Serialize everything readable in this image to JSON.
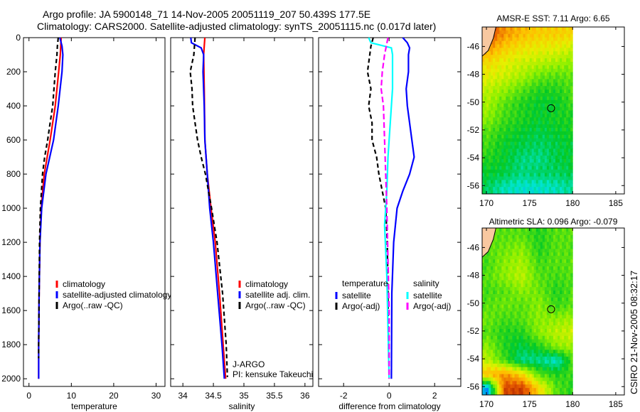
{
  "title_line1": "Argo profile: JA 5900148_71 14-Nov-2005 20051119_207 50.439S 177.5E",
  "title_line2": "Climatology: CARS2000. Satellite-adjusted climatology: synTS_20051115.nc (0.017d later)",
  "side_label": "CSIRO 21-Nov-2005 08:32:17",
  "chart_data": [
    {
      "type": "line",
      "id": "temp",
      "xlabel": "temperature",
      "xlim": [
        -1.3,
        32.1
      ],
      "ylim": [
        0,
        2045
      ],
      "xticks": [
        0,
        10,
        20,
        30
      ],
      "yticks": [
        0,
        200,
        400,
        600,
        800,
        1000,
        1200,
        1400,
        1600,
        1800,
        2000
      ],
      "legend": [
        "climatology",
        "satellite-adjusted climatology",
        "Argo(..raw -QC)"
      ],
      "series": [
        {
          "name": "climatology",
          "color": "#ff0000",
          "dash": "",
          "depth": [
            0,
            50,
            100,
            200,
            400,
            600,
            800,
            1000,
            1200,
            1500,
            1800,
            2000
          ],
          "values": [
            7.6,
            7.5,
            7.4,
            7.0,
            6.2,
            5.0,
            3.6,
            2.9,
            2.6,
            2.4,
            2.3,
            2.3
          ]
        },
        {
          "name": "satellite-adjusted climatology",
          "color": "#0000ff",
          "dash": "",
          "depth": [
            0,
            50,
            100,
            200,
            400,
            600,
            800,
            1000,
            1200,
            1500,
            1800,
            2000
          ],
          "values": [
            7.3,
            7.8,
            8.0,
            7.8,
            6.9,
            5.8,
            4.0,
            3.0,
            2.6,
            2.4,
            2.3,
            2.3
          ]
        },
        {
          "name": "Argo(..raw -QC)",
          "color": "#000000",
          "dash": "6,4",
          "depth": [
            0,
            50,
            100,
            200,
            300,
            400,
            500,
            600,
            700,
            800,
            1000,
            1200,
            1500,
            1800,
            1880
          ],
          "values": [
            6.9,
            6.7,
            6.6,
            6.2,
            5.9,
            5.6,
            5.0,
            4.4,
            3.7,
            3.2,
            2.7,
            2.5,
            2.4,
            2.3,
            2.3
          ]
        }
      ]
    },
    {
      "type": "line",
      "id": "sal",
      "xlabel": "salinity",
      "xlim": [
        33.8,
        36.13
      ],
      "ylim": [
        0,
        2045
      ],
      "xticks": [
        34,
        34.5,
        35,
        35.5,
        36
      ],
      "yticks": [],
      "legend": [
        "climatology",
        "satellite adj. clim.",
        "Argo(..raw -QC)"
      ],
      "annotation": [
        "J-ARGO",
        "PI: kensuke Takeuchi"
      ],
      "series": [
        {
          "name": "climatology",
          "color": "#ff0000",
          "dash": "",
          "depth": [
            0,
            50,
            100,
            300,
            600,
            800,
            1000,
            1200,
            1500,
            1800,
            2000
          ],
          "values": [
            34.36,
            34.35,
            34.34,
            34.35,
            34.36,
            34.4,
            34.46,
            34.53,
            34.6,
            34.66,
            34.7
          ]
        },
        {
          "name": "satellite adj. clim.",
          "color": "#0000ff",
          "dash": "",
          "depth": [
            0,
            30,
            60,
            100,
            200,
            400,
            600,
            800,
            1000,
            1200,
            1500,
            1800,
            2000
          ],
          "values": [
            34.13,
            34.14,
            34.3,
            34.34,
            34.33,
            34.35,
            34.36,
            34.4,
            34.44,
            34.5,
            34.57,
            34.64,
            34.68
          ]
        },
        {
          "name": "Argo(..raw -QC)",
          "color": "#000000",
          "dash": "6,4",
          "depth": [
            0,
            100,
            200,
            300,
            400,
            500,
            600,
            700,
            800,
            1000,
            1200,
            1500,
            1800,
            1990
          ],
          "values": [
            34.2,
            34.18,
            34.12,
            34.15,
            34.16,
            34.2,
            34.24,
            34.3,
            34.37,
            34.47,
            34.56,
            34.65,
            34.71,
            34.73
          ]
        }
      ]
    },
    {
      "type": "line",
      "id": "diff",
      "xlabel": "difference from climatology",
      "xlim": [
        -3.1,
        3.15
      ],
      "ylim": [
        0,
        2045
      ],
      "xticks": [
        -2,
        0,
        2
      ],
      "yticks": [],
      "legend_headers": [
        "temperature",
        "salinity"
      ],
      "legend": [
        "satellite",
        "Argo(-adj)",
        "satellite",
        "Argo(-adj)"
      ],
      "series": [
        {
          "name": "temperature satellite",
          "color": "#0000ff",
          "dash": "",
          "depth": [
            0,
            30,
            60,
            100,
            200,
            300,
            400,
            500,
            600,
            700,
            800,
            900,
            1000,
            1200,
            1500,
            2000
          ],
          "values": [
            0.6,
            0.8,
            0.9,
            0.85,
            0.85,
            0.75,
            0.8,
            0.9,
            1.0,
            1.1,
            0.9,
            0.6,
            0.35,
            0.2,
            0.12,
            0.1
          ]
        },
        {
          "name": "temperature Argo",
          "color": "#000000",
          "dash": "6,4",
          "depth": [
            0,
            50,
            100,
            200,
            300,
            400,
            500,
            600,
            700,
            800,
            900,
            1000,
            1200,
            1500,
            1900
          ],
          "values": [
            -0.7,
            -0.8,
            -0.85,
            -0.95,
            -0.8,
            -0.9,
            -0.75,
            -0.75,
            -0.55,
            -0.45,
            -0.3,
            -0.15,
            -0.08,
            -0.05,
            -0.02
          ]
        },
        {
          "name": "salinity satellite",
          "color": "#00ffff",
          "dash": "",
          "depth": [
            0,
            30,
            60,
            100,
            300,
            500,
            700,
            900,
            1100,
            1400,
            1700,
            2000
          ],
          "values": [
            -0.9,
            -0.8,
            0.1,
            0.15,
            0.15,
            0.05,
            -0.05,
            -0.1,
            -0.2,
            -0.1,
            -0.05,
            0.0
          ]
        },
        {
          "name": "salinity Argo",
          "color": "#ff00ff",
          "dash": "8,4",
          "depth": [
            0,
            100,
            200,
            300,
            400,
            600,
            800,
            1000,
            1300,
            1600,
            2000
          ],
          "values": [
            -0.05,
            -0.2,
            -0.3,
            -0.35,
            -0.25,
            -0.2,
            -0.15,
            -0.1,
            -0.05,
            0.0,
            0.0
          ]
        }
      ]
    },
    {
      "type": "heatmap",
      "id": "sst",
      "title": "AMSR-E SST: 7.11 Argo: 6.65",
      "xlim": [
        169.5,
        186
      ],
      "ylim": [
        -56.6,
        -44.6
      ],
      "xticks": [
        170,
        175,
        180,
        185
      ],
      "yticks": [
        -46,
        -48,
        -50,
        -52,
        -54,
        -56
      ],
      "argo_point": [
        177.5,
        -50.44
      ],
      "lon": [
        170,
        172,
        174,
        176,
        178,
        180
      ],
      "lat": [
        -45,
        -46,
        -47,
        -48,
        -49,
        -50,
        -51,
        -52,
        -53,
        -54,
        -55,
        -56
      ],
      "grid": [
        [
          0.9,
          0.8,
          0.75,
          0.72,
          0.72,
          0.7
        ],
        [
          0.8,
          0.72,
          0.68,
          0.66,
          0.65,
          0.62
        ],
        [
          0.7,
          0.65,
          0.62,
          0.6,
          0.58,
          0.55
        ],
        [
          0.65,
          0.62,
          0.58,
          0.52,
          0.5,
          0.52
        ],
        [
          0.6,
          0.56,
          0.5,
          0.45,
          0.45,
          0.5
        ],
        [
          0.58,
          0.5,
          0.45,
          0.42,
          0.42,
          0.48
        ],
        [
          0.55,
          0.48,
          0.45,
          0.42,
          0.44,
          0.45
        ],
        [
          0.5,
          0.45,
          0.42,
          0.4,
          0.42,
          0.44
        ],
        [
          0.48,
          0.42,
          0.4,
          0.38,
          0.4,
          0.42
        ],
        [
          0.45,
          0.42,
          0.36,
          0.35,
          0.4,
          0.42
        ],
        [
          0.42,
          0.4,
          0.36,
          0.38,
          0.38,
          0.4
        ],
        [
          0.38,
          0.32,
          0.3,
          0.3,
          0.32,
          0.35
        ]
      ]
    },
    {
      "type": "heatmap",
      "id": "sla",
      "title": "Altimetric SLA: 0.096 Argo: -0.079",
      "xlim": [
        169.5,
        186
      ],
      "ylim": [
        -56.6,
        -44.6
      ],
      "xticks": [
        170,
        175,
        180,
        185
      ],
      "yticks": [
        -46,
        -48,
        -50,
        -52,
        -54,
        -56
      ],
      "argo_point": [
        177.5,
        -50.44
      ],
      "lon": [
        170,
        172,
        174,
        176,
        178,
        180
      ],
      "lat": [
        -45,
        -46,
        -47,
        -48,
        -49,
        -50,
        -51,
        -52,
        -53,
        -54,
        -55,
        -56
      ],
      "grid": [
        [
          0.5,
          0.5,
          0.5,
          0.45,
          0.5,
          0.5
        ],
        [
          0.5,
          0.52,
          0.55,
          0.45,
          0.5,
          0.5
        ],
        [
          0.48,
          0.55,
          0.58,
          0.48,
          0.5,
          0.5
        ],
        [
          0.5,
          0.55,
          0.6,
          0.5,
          0.48,
          0.5
        ],
        [
          0.48,
          0.5,
          0.55,
          0.52,
          0.45,
          0.5
        ],
        [
          0.5,
          0.52,
          0.5,
          0.55,
          0.47,
          0.5
        ],
        [
          0.52,
          0.48,
          0.5,
          0.55,
          0.55,
          0.58
        ],
        [
          0.5,
          0.45,
          0.45,
          0.55,
          0.6,
          0.62
        ],
        [
          0.55,
          0.45,
          0.4,
          0.45,
          0.55,
          0.58
        ],
        [
          0.6,
          0.48,
          0.35,
          0.35,
          0.3,
          0.5
        ],
        [
          0.75,
          0.8,
          0.7,
          0.5,
          0.45,
          0.48
        ],
        [
          0.2,
          0.9,
          0.92,
          0.7,
          0.5,
          0.45
        ]
      ]
    }
  ],
  "colors": {
    "land": "#f8c8a0"
  }
}
